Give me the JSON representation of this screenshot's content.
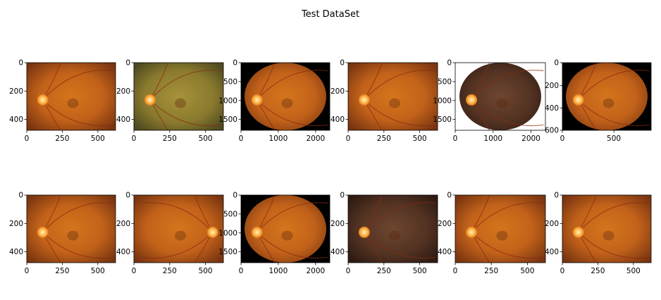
{
  "figure": {
    "title": "Test DataSet"
  },
  "panels": [
    {
      "name": "panel-1",
      "x_ticks": [
        "0",
        "250",
        "500"
      ],
      "y_ticks": [
        "0",
        "200",
        "400"
      ],
      "image": "retinal-fundus-photo",
      "background": "white",
      "disc": "left"
    },
    {
      "name": "panel-2",
      "x_ticks": [
        "0",
        "250",
        "500"
      ],
      "y_ticks": [
        "0",
        "200",
        "400"
      ],
      "image": "retinal-fundus-photo",
      "background": "white",
      "disc": "left",
      "tint": "greenish"
    },
    {
      "name": "panel-3",
      "x_ticks": [
        "0",
        "1000",
        "2000"
      ],
      "y_ticks": [
        "0",
        "500",
        "1000",
        "1500"
      ],
      "image": "retinal-fundus-photo",
      "background": "black",
      "disc": "left",
      "circular": true
    },
    {
      "name": "panel-4",
      "x_ticks": [
        "0",
        "250",
        "500"
      ],
      "y_ticks": [
        "0",
        "200",
        "400"
      ],
      "image": "retinal-fundus-photo",
      "background": "white",
      "disc": "left"
    },
    {
      "name": "panel-5",
      "x_ticks": [
        "0",
        "1000",
        "2000"
      ],
      "y_ticks": [
        "0",
        "500",
        "1000",
        "1500"
      ],
      "image": "retinal-fundus-photo",
      "background": "white",
      "disc": "left",
      "circular": true,
      "tint": "dark"
    },
    {
      "name": "panel-6",
      "x_ticks": [
        "0",
        "500"
      ],
      "y_ticks": [
        "0",
        "200",
        "400",
        "600"
      ],
      "image": "retinal-fundus-photo",
      "background": "black",
      "disc": "left",
      "circular": true
    },
    {
      "name": "panel-7",
      "x_ticks": [
        "0",
        "250",
        "500"
      ],
      "y_ticks": [
        "0",
        "200",
        "400"
      ],
      "image": "retinal-fundus-photo",
      "background": "white",
      "disc": "left"
    },
    {
      "name": "panel-8",
      "x_ticks": [
        "0",
        "250",
        "500"
      ],
      "y_ticks": [
        "0",
        "200",
        "400"
      ],
      "image": "retinal-fundus-photo",
      "background": "white",
      "disc": "right"
    },
    {
      "name": "panel-9",
      "x_ticks": [
        "0",
        "1000",
        "2000"
      ],
      "y_ticks": [
        "0",
        "500",
        "1000",
        "1500"
      ],
      "image": "retinal-fundus-photo",
      "background": "black",
      "disc": "left",
      "circular": true
    },
    {
      "name": "panel-10",
      "x_ticks": [
        "0",
        "250",
        "500"
      ],
      "y_ticks": [
        "0",
        "200",
        "400"
      ],
      "image": "retinal-fundus-photo",
      "background": "white",
      "disc": "left",
      "tint": "dark"
    },
    {
      "name": "panel-11",
      "x_ticks": [
        "0",
        "250",
        "500"
      ],
      "y_ticks": [
        "0",
        "200",
        "400"
      ],
      "image": "retinal-fundus-photo",
      "background": "white",
      "disc": "left"
    },
    {
      "name": "panel-12",
      "x_ticks": [
        "0",
        "250",
        "500"
      ],
      "y_ticks": [
        "0",
        "200",
        "400"
      ],
      "image": "retinal-fundus-photo",
      "background": "white",
      "disc": "left"
    }
  ]
}
